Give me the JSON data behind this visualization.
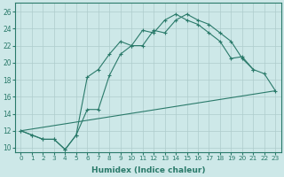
{
  "background_color": "#cde8e8",
  "grid_color": "#aecccc",
  "line_color": "#2a7a6a",
  "xlabel": "Humidex (Indice chaleur)",
  "ylim": [
    9.5,
    27
  ],
  "xlim": [
    -0.5,
    23.5
  ],
  "yticks": [
    10,
    12,
    14,
    16,
    18,
    20,
    22,
    24,
    26
  ],
  "xticks": [
    0,
    1,
    2,
    3,
    4,
    5,
    6,
    7,
    8,
    9,
    10,
    11,
    12,
    13,
    14,
    15,
    16,
    17,
    18,
    19,
    20,
    21,
    22,
    23
  ],
  "line1_x": [
    0,
    1,
    2,
    3,
    4,
    5,
    6,
    7,
    8,
    9,
    10,
    11,
    12,
    13,
    14,
    15,
    16,
    17,
    18,
    19,
    20,
    21
  ],
  "line1_y": [
    12,
    11.5,
    11.0,
    11.0,
    9.8,
    11.5,
    18.3,
    19.2,
    21.0,
    22.5,
    22.0,
    23.8,
    23.5,
    25.0,
    25.7,
    25.0,
    24.5,
    23.5,
    22.5,
    20.5,
    20.7,
    19.2
  ],
  "line2_x": [
    0,
    23
  ],
  "line2_y": [
    12.0,
    16.7
  ],
  "line3_x": [
    0,
    1,
    2,
    3,
    4,
    5,
    6,
    7,
    8,
    9,
    10,
    11,
    12,
    13,
    14,
    15,
    16,
    17,
    18,
    19,
    20,
    21,
    22,
    23
  ],
  "line3_y": [
    12,
    11.5,
    11.0,
    11.0,
    9.8,
    11.5,
    14.5,
    14.5,
    18.5,
    21.0,
    22.0,
    22.0,
    23.8,
    23.5,
    25.0,
    25.7,
    25.0,
    24.5,
    23.5,
    22.5,
    20.5,
    19.2,
    18.7,
    16.7
  ]
}
